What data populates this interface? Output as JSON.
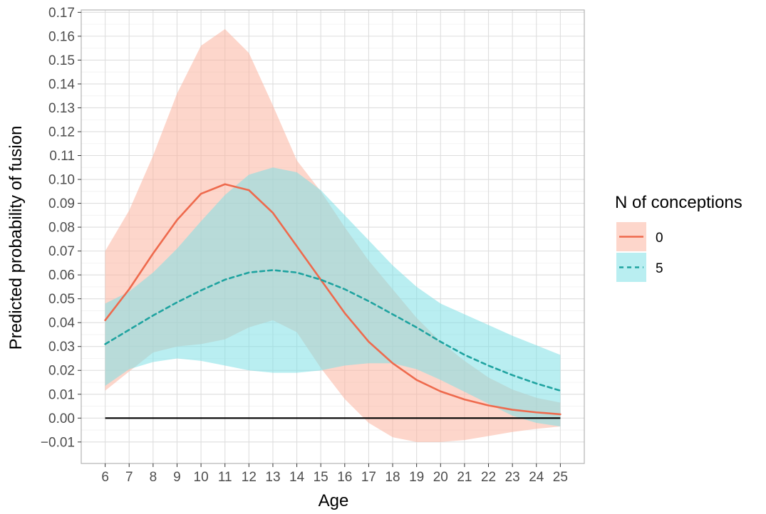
{
  "chart_data": {
    "type": "line",
    "xlabel": "Age",
    "ylabel": "Predicted probability of fusion",
    "x": [
      6,
      7,
      8,
      9,
      10,
      11,
      12,
      13,
      14,
      15,
      16,
      17,
      18,
      19,
      20,
      21,
      22,
      23,
      24,
      25
    ],
    "x_ticks": [
      "6",
      "7",
      "8",
      "9",
      "10",
      "11",
      "12",
      "13",
      "14",
      "15",
      "16",
      "17",
      "18",
      "19",
      "20",
      "21",
      "22",
      "23",
      "24",
      "25"
    ],
    "xlim": [
      5,
      26
    ],
    "ylim": [
      -0.019,
      0.171
    ],
    "y_ticks": [
      "0.17",
      "0.16",
      "0.15",
      "0.14",
      "0.13",
      "0.12",
      "0.11",
      "0.10",
      "0.09",
      "0.08",
      "0.07",
      "0.06",
      "0.05",
      "0.04",
      "0.03",
      "0.02",
      "0.01",
      "0.00",
      "−0.01"
    ],
    "grid": true,
    "reference_line": 0.0,
    "legend": {
      "title": "N of conceptions",
      "position": "right",
      "entries": [
        "0",
        "5"
      ]
    },
    "series": [
      {
        "name": "0",
        "line_color": "#ee6a4d",
        "band_color": "#fbb5a0",
        "line_style": "solid",
        "values": [
          0.041,
          0.054,
          0.069,
          0.083,
          0.094,
          0.098,
          0.0955,
          0.086,
          0.072,
          0.058,
          0.044,
          0.032,
          0.023,
          0.016,
          0.0112,
          0.0078,
          0.0053,
          0.0035,
          0.0024,
          0.0016
        ],
        "lower": [
          0.0115,
          0.0195,
          0.0275,
          0.03,
          0.031,
          0.033,
          0.038,
          0.041,
          0.036,
          0.021,
          0.008,
          -0.002,
          -0.008,
          -0.01,
          -0.01,
          -0.0092,
          -0.0075,
          -0.0058,
          -0.0045,
          -0.0035
        ],
        "upper": [
          0.07,
          0.087,
          0.11,
          0.136,
          0.156,
          0.163,
          0.153,
          0.131,
          0.108,
          0.095,
          0.08,
          0.066,
          0.054,
          0.042,
          0.032,
          0.024,
          0.017,
          0.012,
          0.0085,
          0.0065
        ]
      },
      {
        "name": "5",
        "line_color": "#1fa3a0",
        "band_color": "#7fe0e5",
        "line_style": "dashed",
        "values": [
          0.031,
          0.037,
          0.043,
          0.0485,
          0.0535,
          0.058,
          0.061,
          0.062,
          0.061,
          0.058,
          0.054,
          0.049,
          0.0435,
          0.038,
          0.032,
          0.0265,
          0.022,
          0.018,
          0.0145,
          0.0115
        ],
        "lower": [
          0.0135,
          0.0205,
          0.0235,
          0.025,
          0.024,
          0.022,
          0.02,
          0.019,
          0.019,
          0.02,
          0.022,
          0.023,
          0.023,
          0.0205,
          0.016,
          0.011,
          0.006,
          0.001,
          -0.002,
          -0.0035
        ],
        "upper": [
          0.048,
          0.053,
          0.061,
          0.071,
          0.0825,
          0.0935,
          0.102,
          0.105,
          0.103,
          0.0955,
          0.085,
          0.0745,
          0.064,
          0.055,
          0.048,
          0.0435,
          0.039,
          0.0345,
          0.0305,
          0.0265
        ]
      }
    ]
  }
}
